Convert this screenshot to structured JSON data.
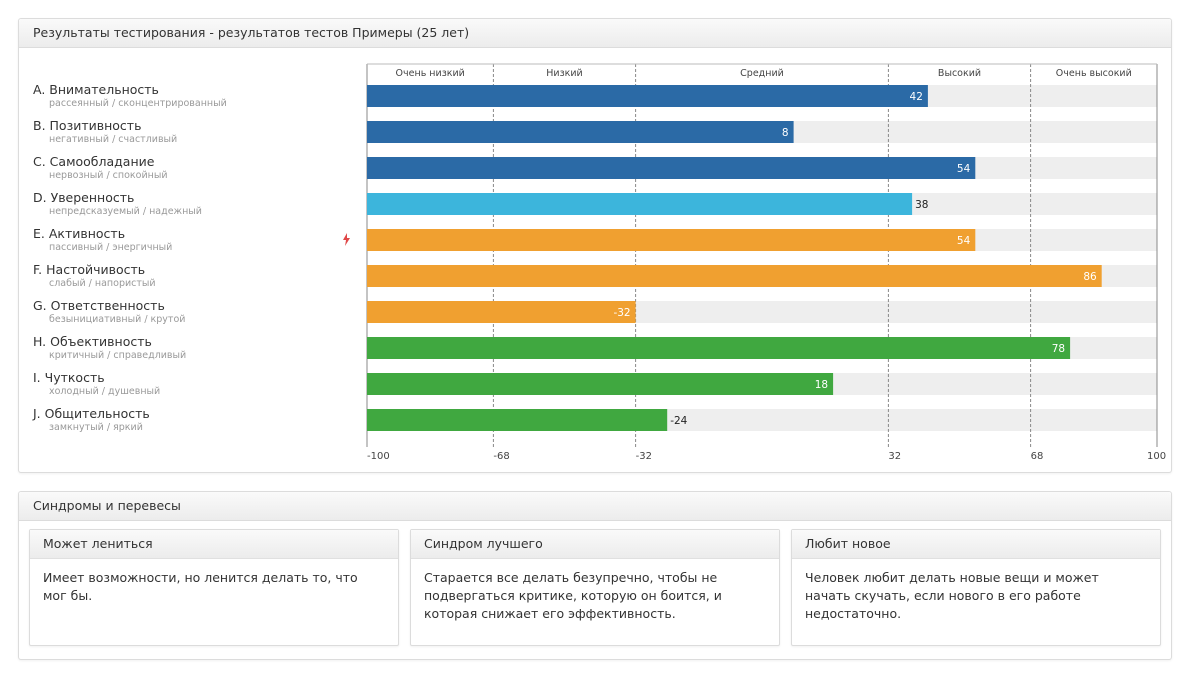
{
  "results": {
    "title": "Результаты тестирования - результатов тестов Примеры (25 лет)"
  },
  "chart_data": {
    "type": "bar",
    "orientation": "horizontal",
    "xlim": [
      -100,
      100
    ],
    "ticks": [
      -100,
      -68,
      -32,
      32,
      68,
      100
    ],
    "bands": [
      {
        "label": "Очень низкий",
        "from": -100,
        "to": -68
      },
      {
        "label": "Низкий",
        "from": -68,
        "to": -32
      },
      {
        "label": "Средний",
        "from": -32,
        "to": 32
      },
      {
        "label": "Высокий",
        "from": 32,
        "to": 68
      },
      {
        "label": "Очень высокий",
        "from": 68,
        "to": 100
      }
    ],
    "series": [
      {
        "name": "A. Внимательность",
        "sub": "рассеянный / сконцентрированный",
        "value": 42,
        "color": "#2b6aa6",
        "label_inside": true
      },
      {
        "name": "B. Позитивность",
        "sub": "негативный / счастливый",
        "value": 8,
        "color": "#2b6aa6",
        "label_inside": true
      },
      {
        "name": "C. Самообладание",
        "sub": "нервозный / спокойный",
        "value": 54,
        "color": "#2b6aa6",
        "label_inside": true
      },
      {
        "name": "D. Уверенность",
        "sub": "непредсказуемый / надежный",
        "value": 38,
        "color": "#3cb5dc",
        "label_inside": false
      },
      {
        "name": "E. Активность",
        "sub": "пассивный / энергичный",
        "value": 54,
        "color": "#f0a030",
        "label_inside": true,
        "flag": true
      },
      {
        "name": "F. Настойчивость",
        "sub": "слабый / напористый",
        "value": 86,
        "color": "#f0a030",
        "label_inside": true
      },
      {
        "name": "G. Ответственность",
        "sub": "безынициативный / крутой",
        "value": -32,
        "color": "#f0a030",
        "label_inside": true
      },
      {
        "name": "H. Объективность",
        "sub": "критичный / справедливый",
        "value": 78,
        "color": "#40a840",
        "label_inside": true
      },
      {
        "name": "I.  Чуткость",
        "sub": "холодный / душевный",
        "value": 18,
        "color": "#40a840",
        "label_inside": true
      },
      {
        "name": "J. Общительность",
        "sub": "замкнутый / яркий",
        "value": -24,
        "color": "#40a840",
        "label_inside": false
      }
    ]
  },
  "syndromes": {
    "title": "Синдромы и перевесы",
    "cards": [
      {
        "title": "Может лениться",
        "text": "Имеет возможности, но ленится делать то, что мог бы."
      },
      {
        "title": "Синдром лучшего",
        "text": "Старается все делать безупречно, чтобы не подвергаться критике, которую он боится, и которая снижает его эффективность."
      },
      {
        "title": "Любит новое",
        "text": "Человек любит делать новые вещи и может начать скучать, если нового в его работе недостаточно."
      }
    ]
  }
}
